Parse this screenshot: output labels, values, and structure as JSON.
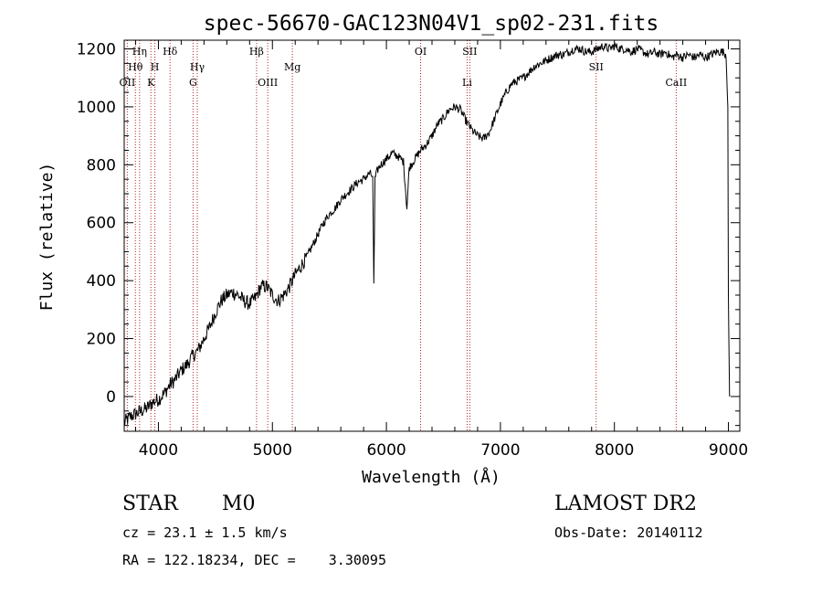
{
  "chart_data": {
    "type": "line",
    "title": "spec-56670-GAC123N04V1_sp02-231.fits",
    "xlabel": "Wavelength (Å)",
    "ylabel": "Flux (relative)",
    "xlim": [
      3700,
      9100
    ],
    "ylim": [
      -120,
      1230
    ],
    "xticks": [
      4000,
      5000,
      6000,
      7000,
      8000,
      9000
    ],
    "yticks": [
      0,
      200,
      400,
      600,
      800,
      1000,
      1200
    ],
    "series": [
      {
        "x": [
          3700,
          3750,
          3800,
          3850,
          3900,
          3950,
          4000,
          4050,
          4100,
          4150,
          4200,
          4250,
          4300,
          4350,
          4400,
          4450,
          4500,
          4550,
          4600,
          4650,
          4700,
          4750,
          4800,
          4850,
          4900,
          4950,
          5000,
          5050,
          5100,
          5150,
          5200,
          5250,
          5300,
          5350,
          5400,
          5450,
          5500,
          5550,
          5600,
          5650,
          5700,
          5750,
          5800,
          5850,
          5880,
          5890,
          5900,
          5920,
          5950,
          6000,
          6050,
          6100,
          6150,
          6180,
          6200,
          6250,
          6300,
          6350,
          6400,
          6450,
          6500,
          6550,
          6600,
          6650,
          6700,
          6750,
          6800,
          6850,
          6900,
          6950,
          7000,
          7050,
          7100,
          7150,
          7200,
          7250,
          7300,
          7350,
          7400,
          7450,
          7500,
          7550,
          7600,
          7650,
          7700,
          7750,
          7800,
          7850,
          7900,
          7950,
          8000,
          8050,
          8100,
          8150,
          8200,
          8250,
          8300,
          8350,
          8400,
          8450,
          8500,
          8550,
          8600,
          8650,
          8700,
          8750,
          8800,
          8850,
          8900,
          8950,
          8980,
          8995,
          9000,
          9010
        ],
        "y": [
          -90,
          -70,
          -60,
          -50,
          -40,
          -20,
          -10,
          10,
          40,
          60,
          90,
          110,
          140,
          160,
          200,
          240,
          290,
          330,
          350,
          360,
          350,
          330,
          320,
          340,
          380,
          380,
          350,
          330,
          350,
          380,
          420,
          450,
          480,
          520,
          560,
          600,
          630,
          650,
          680,
          700,
          720,
          740,
          750,
          770,
          760,
          390,
          750,
          780,
          800,
          820,
          840,
          830,
          810,
          650,
          790,
          820,
          850,
          870,
          900,
          940,
          960,
          990,
          1000,
          990,
          950,
          920,
          900,
          890,
          910,
          960,
          1010,
          1050,
          1080,
          1090,
          1100,
          1120,
          1140,
          1150,
          1160,
          1170,
          1180,
          1180,
          1190,
          1200,
          1200,
          1190,
          1190,
          1200,
          1210,
          1200,
          1210,
          1200,
          1200,
          1190,
          1200,
          1190,
          1180,
          1190,
          1180,
          1190,
          1170,
          1180,
          1170,
          1180,
          1170,
          1180,
          1170,
          1180,
          1190,
          1190,
          1180,
          1000,
          350,
          0
        ]
      }
    ],
    "annotations": [
      {
        "label": "OII",
        "x": 3727,
        "row": 3
      },
      {
        "label": "Hθ",
        "x": 3798,
        "row": 2
      },
      {
        "label": "Hη",
        "x": 3835,
        "row": 1
      },
      {
        "label": "K",
        "x": 3934,
        "row": 3
      },
      {
        "label": "H",
        "x": 3969,
        "row": 2
      },
      {
        "label": "Hδ",
        "x": 4102,
        "row": 1
      },
      {
        "label": "G",
        "x": 4304,
        "row": 3
      },
      {
        "label": "Hγ",
        "x": 4341,
        "row": 2
      },
      {
        "label": "Hβ",
        "x": 4861,
        "row": 1
      },
      {
        "label": "OIII",
        "x": 4959,
        "row": 3
      },
      {
        "label": "Mg",
        "x": 5175,
        "row": 2
      },
      {
        "label": "OI",
        "x": 6300,
        "row": 1
      },
      {
        "label": "Li",
        "x": 6708,
        "row": 3
      },
      {
        "label": "SII",
        "x": 6731,
        "row": 1
      },
      {
        "label": "SII",
        "x": 7840,
        "row": 2
      },
      {
        "label": "CaII",
        "x": 8542,
        "row": 3
      }
    ],
    "line_color": "#000000",
    "annotation_line_color": "#b22222",
    "grid": false
  },
  "footer": {
    "object_class": "STAR",
    "subclass": "M0",
    "survey": "LAMOST DR2",
    "cz": "cz = 23.1 ± 1.5 km/s",
    "obs_date": "Obs-Date: 20140112",
    "coords": "RA = 122.18234, DEC =    3.30095"
  }
}
